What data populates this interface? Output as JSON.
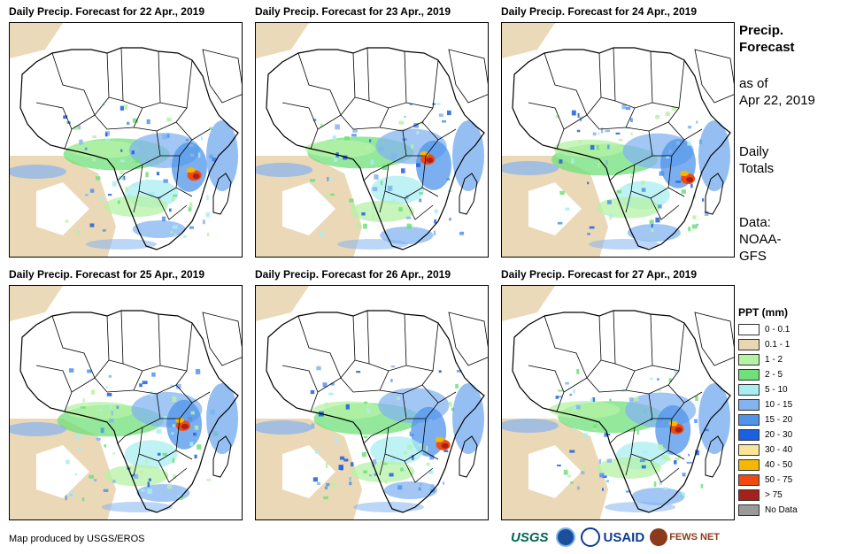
{
  "panels": [
    {
      "title": "Daily Precip. Forecast for 22 Apr., 2019"
    },
    {
      "title": "Daily Precip. Forecast for 23 Apr., 2019"
    },
    {
      "title": "Daily Precip. Forecast for 24 Apr., 2019"
    },
    {
      "title": "Daily Precip. Forecast for 25 Apr., 2019"
    },
    {
      "title": "Daily Precip. Forecast for 26 Apr., 2019"
    },
    {
      "title": "Daily Precip. Forecast for 27 Apr., 2019"
    }
  ],
  "sidebar": {
    "title_line1": "Precip.",
    "title_line2": "Forecast",
    "asof_line1": "as of",
    "asof_line2": "Apr 22, 2019",
    "totals_line1": "Daily",
    "totals_line2": "Totals",
    "data_line1": "Data:",
    "data_line2": "NOAA-",
    "data_line3": "GFS"
  },
  "legend": {
    "title": "PPT (mm)",
    "items": [
      {
        "label": "0 - 0.1",
        "color": "#ffffff"
      },
      {
        "label": "0.1 - 1",
        "color": "#e9d6b3"
      },
      {
        "label": "1 - 2",
        "color": "#b6f2a6"
      },
      {
        "label": "2 - 5",
        "color": "#6fe07a"
      },
      {
        "label": "5 - 10",
        "color": "#a8eef0"
      },
      {
        "label": "10 - 15",
        "color": "#84b4f0"
      },
      {
        "label": "15 - 20",
        "color": "#4f94ea"
      },
      {
        "label": "20 - 30",
        "color": "#1c5fe0"
      },
      {
        "label": "30 - 40",
        "color": "#f9e49a"
      },
      {
        "label": "40 - 50",
        "color": "#f5b800"
      },
      {
        "label": "50 - 75",
        "color": "#ee4a12"
      },
      {
        "label": "> 75",
        "color": "#a8201a"
      },
      {
        "label": "No Data",
        "color": "#9a9a9a"
      }
    ]
  },
  "credit": "Map produced by USGS/EROS",
  "logos": {
    "usgs": "USGS",
    "usaid": "USAID",
    "fews": "FEWS NET",
    "noaa_icon": "noaa-icon"
  }
}
